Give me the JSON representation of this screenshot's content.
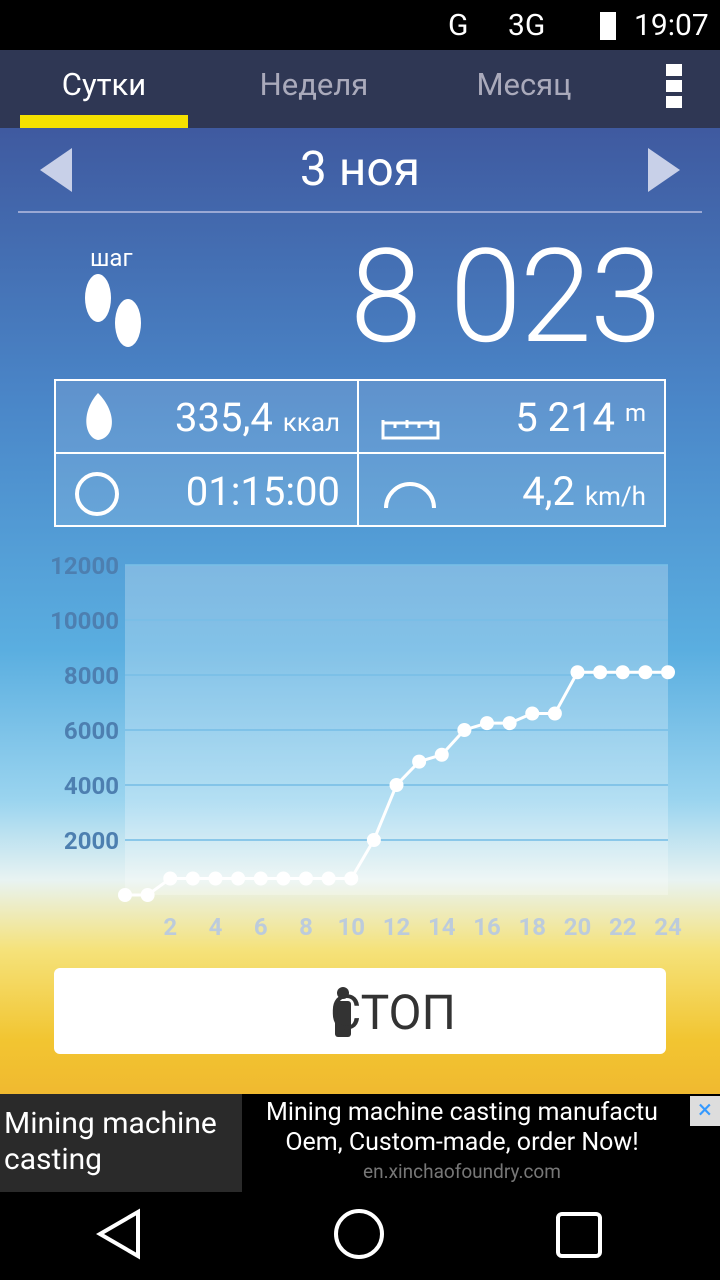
{
  "status_bar": {
    "network_1": "G",
    "network_2": "3G",
    "time": "19:07"
  },
  "tabs": [
    "Сутки",
    "Неделя",
    "Месяц"
  ],
  "date": "3 ноя",
  "steps": {
    "label": "шаг",
    "value": "8 023"
  },
  "stats": {
    "calories": {
      "value": "335,4",
      "unit": "ккал"
    },
    "distance": {
      "value": "5 214",
      "unit": "m"
    },
    "duration": {
      "value": "01:15:00"
    },
    "speed": {
      "value": "4,2",
      "unit": "km/h"
    }
  },
  "chart_data": {
    "type": "line",
    "x": [
      0,
      1,
      2,
      3,
      4,
      5,
      6,
      7,
      8,
      9,
      10,
      11,
      12,
      13,
      14,
      15,
      16,
      17,
      18,
      19,
      20,
      21,
      22,
      23,
      24
    ],
    "values": [
      0,
      0,
      600,
      600,
      600,
      600,
      600,
      600,
      600,
      600,
      600,
      2000,
      4000,
      4850,
      5100,
      6000,
      6250,
      6250,
      6600,
      6600,
      8100,
      8100,
      8100,
      8100,
      8100
    ],
    "color": "#ffffff",
    "xlim": [
      0,
      24
    ],
    "xticks": [
      2,
      4,
      6,
      8,
      10,
      12,
      14,
      16,
      18,
      20,
      22,
      24
    ],
    "ylim": [
      0,
      12000
    ],
    "yticks": [
      2000,
      4000,
      6000,
      8000,
      10000,
      12000
    ],
    "grid": true
  },
  "button": "СТОП",
  "ad": {
    "left": "Mining machine casting",
    "headline": "Mining machine casting manufactu",
    "body": "Oem, Custom-made, order Now!",
    "url": "en.xinchaofoundry.com"
  }
}
